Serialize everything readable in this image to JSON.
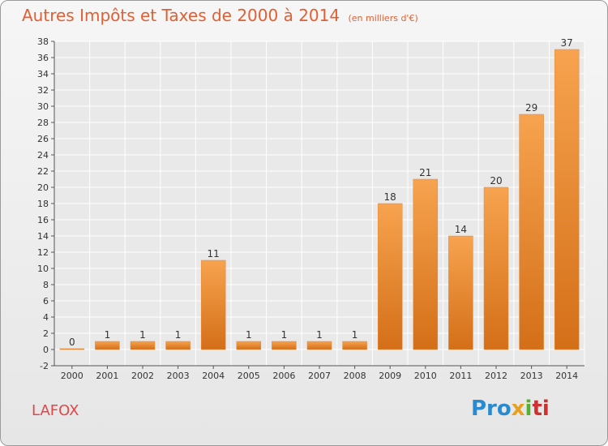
{
  "title": "Autres Impôts et Taxes de 2000 à 2014",
  "subtitle": "(en milliers d'€)",
  "commune": "LAFOX",
  "logo": {
    "p1": "Pro",
    "p2": "x",
    "p3": "i",
    "p4": "ti"
  },
  "chart_data": {
    "type": "bar",
    "title": "Autres Impôts et Taxes de 2000 à 2014",
    "subtitle": "(en milliers d'€)",
    "categories": [
      "2000",
      "2001",
      "2002",
      "2003",
      "2004",
      "2005",
      "2006",
      "2007",
      "2008",
      "2009",
      "2010",
      "2011",
      "2012",
      "2013",
      "2014"
    ],
    "values": [
      0,
      1,
      1,
      1,
      11,
      1,
      1,
      1,
      1,
      18,
      21,
      14,
      20,
      29,
      37
    ],
    "ylim": [
      -2,
      38
    ],
    "yticks": [
      -2,
      0,
      2,
      4,
      6,
      8,
      10,
      12,
      14,
      16,
      18,
      20,
      22,
      24,
      26,
      28,
      30,
      32,
      34,
      36,
      38
    ],
    "grid": true,
    "colors": {
      "bar_light": "#f7a04e",
      "bar_dark": "#d8701a",
      "title": "#e06033",
      "grid": "#ffffff"
    }
  }
}
